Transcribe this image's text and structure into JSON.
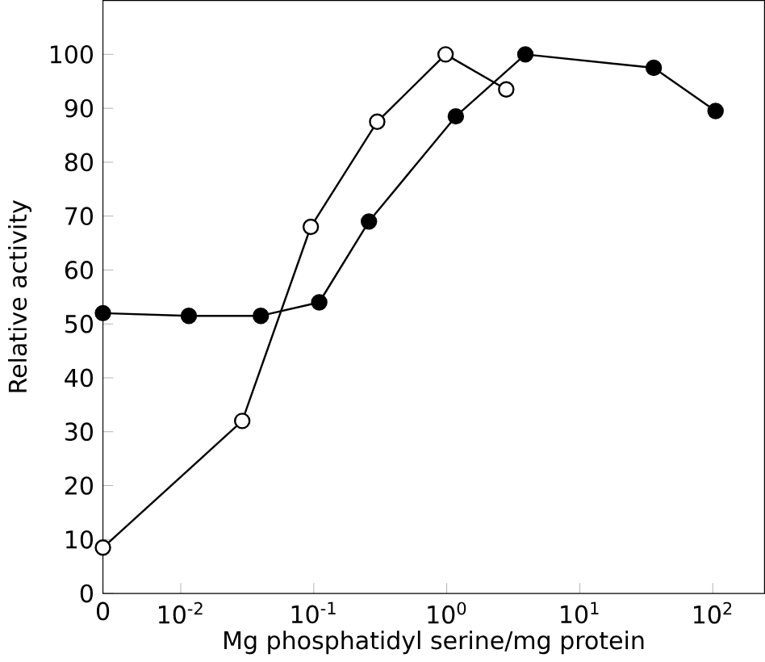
{
  "chart_data": {
    "type": "line",
    "xlabel": "Mg phosphatidyl serine/mg protein",
    "ylabel": "Relative activity",
    "series": [
      {
        "color": "#000000",
        "marker": "circle",
        "x": [
          0.0026,
          0.0115,
          0.04,
          0.11,
          0.26,
          1.17,
          3.9,
          36,
          105
        ],
        "values": [
          52,
          51.5,
          51.5,
          54,
          69,
          88.5,
          100,
          97.5,
          89.5
        ]
      },
      {
        "color": "#000000",
        "marker": "circle",
        "x": [
          0.0026,
          0.029,
          0.095,
          0.3,
          0.98,
          2.8
        ],
        "values": [
          8.5,
          32,
          68,
          87.5,
          100,
          93.5
        ]
      }
    ],
    "log": "x",
    "xlim": [
      0.0026,
      245
    ],
    "ylim": [
      0,
      110
    ],
    "xticks": [
      {
        "value": 0.0026,
        "label": "0"
      },
      {
        "value": 0.01,
        "label": "10$^{-2}$"
      },
      {
        "value": 0.1,
        "label": "10$^{-1}$"
      },
      {
        "value": 1,
        "label": "10$^{0}$"
      },
      {
        "value": 10,
        "label": "10$^{1}$"
      },
      {
        "value": 100,
        "label": "10$^{2}$"
      }
    ],
    "yticks": [
      0,
      10,
      20,
      30,
      40,
      50,
      60,
      70,
      80,
      90,
      100
    ],
    "line_style": "solid"
  }
}
